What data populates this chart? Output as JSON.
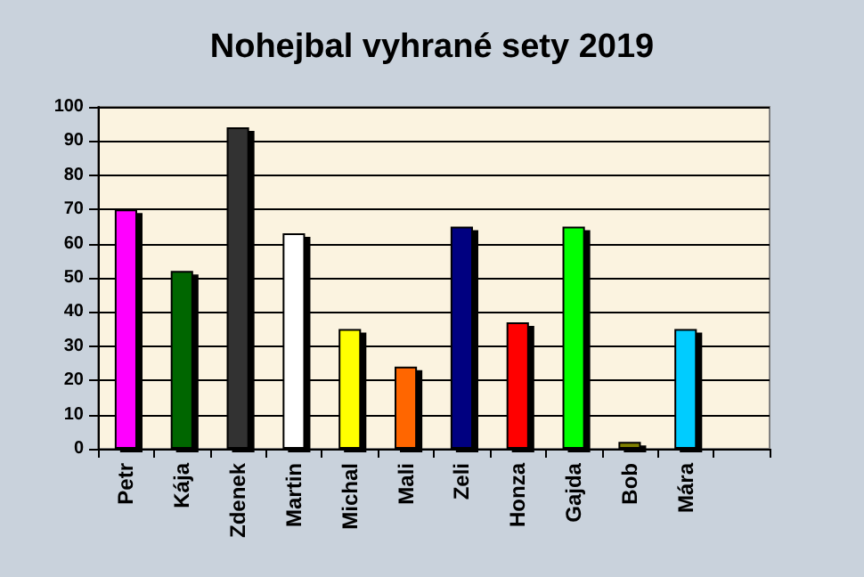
{
  "chart_data": {
    "type": "bar",
    "title": "Nohejbal vyhrané sety 2019",
    "categories": [
      "Petr",
      "Kája",
      "Zdenek",
      "Martin",
      "Michal",
      "Mali",
      "Zeli",
      "Honza",
      "Gajda",
      "Bob",
      "Mára",
      null
    ],
    "values": [
      70,
      52,
      94,
      63,
      35,
      24,
      65,
      37,
      65,
      2,
      35,
      null
    ],
    "colors": [
      "#ff00ff",
      "#006600",
      "#333333",
      "#ffffff",
      "#ffff00",
      "#ff6600",
      "#000080",
      "#ff0000",
      "#00ff00",
      "#808000",
      "#00ccff",
      "#000000"
    ],
    "ylim": [
      0,
      100
    ],
    "yticks": [
      0,
      10,
      20,
      30,
      40,
      50,
      60,
      70,
      80,
      90,
      100
    ],
    "grid": "y"
  }
}
